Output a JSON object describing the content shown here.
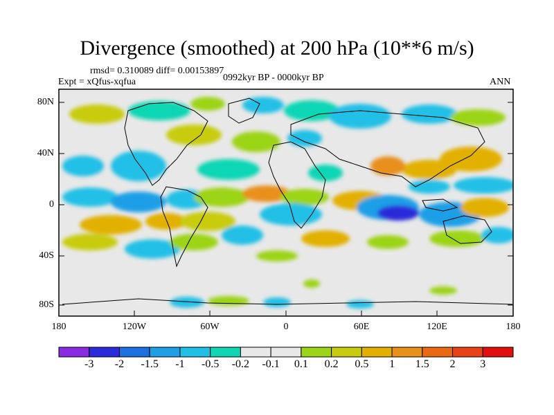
{
  "header": {
    "title": "Divergence (smoothed) at 200 hPa (10**6 m/s)",
    "stats": "rmsd= 0.310089 diff= 0.00153897",
    "experiment": "Expt = xQfus-xqfua",
    "period": "0992kyr BP - 0000kyr BP",
    "season": "ANN"
  },
  "axes": {
    "lat_ticks": [
      "80N",
      "40N",
      "0",
      "40S",
      "80S"
    ],
    "lon_ticks": [
      "180",
      "120W",
      "60W",
      "0",
      "60E",
      "120E",
      "180"
    ]
  },
  "colorbar": {
    "colors": [
      "#8a2be2",
      "#2b2bd9",
      "#1e6fe0",
      "#1e9fe6",
      "#20c0e6",
      "#10d6b4",
      "#e8e8e8",
      "#e8e8e8",
      "#9cd419",
      "#c8cc10",
      "#e2b000",
      "#e8901a",
      "#ea6a14",
      "#e84218",
      "#e01010"
    ],
    "labels": [
      "-3",
      "-2",
      "-1.5",
      "-1",
      "-0.5",
      "-0.2",
      "-0.1",
      "0.1",
      "0.2",
      "0.5",
      "1",
      "1.5",
      "2",
      "3"
    ]
  }
}
